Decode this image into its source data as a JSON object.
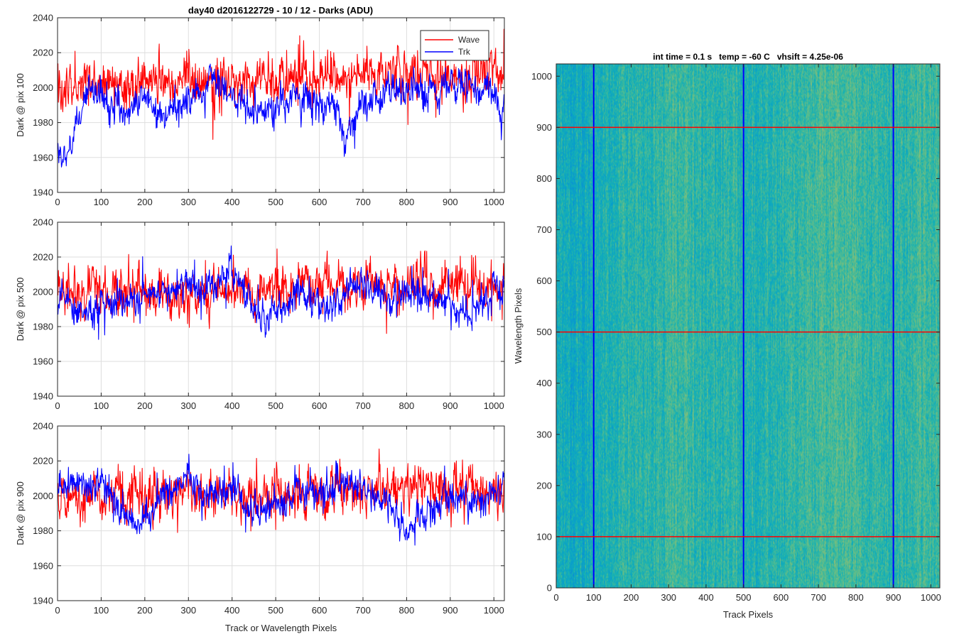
{
  "figure": {
    "suptitle": "day40 d2016122729 - 10 / 12 - Darks (ADU)",
    "colors": {
      "wave": "#ff0000",
      "trk": "#0000ff",
      "grid": "#dedede",
      "axes": "#262626"
    }
  },
  "chart_data": [
    {
      "type": "line",
      "ylabel": "Dark @ pix 100",
      "xlim": [
        0,
        1024
      ],
      "ylim": [
        1940,
        2040
      ],
      "xticks": [
        0,
        100,
        200,
        300,
        400,
        500,
        600,
        700,
        800,
        900,
        1000
      ],
      "yticks": [
        1940,
        1960,
        1980,
        2000,
        2020,
        2040
      ],
      "grid": true,
      "legend": {
        "placement": "top-right"
      },
      "series": [
        {
          "name": "Wave",
          "color": "#ff0000",
          "mean": 2001,
          "noise": 7,
          "spike": 17,
          "trend": [
            [
              0,
              1999
            ],
            [
              300,
              2004
            ],
            [
              600,
              2006
            ],
            [
              800,
              2008
            ],
            [
              1024,
              2005
            ]
          ]
        },
        {
          "name": "Trk",
          "color": "#0000ff",
          "mean": 1995,
          "noise": 5,
          "spike": 10,
          "trend": [
            [
              0,
              1963
            ],
            [
              25,
              1958
            ],
            [
              40,
              1975
            ],
            [
              70,
              2000
            ],
            [
              100,
              1998
            ],
            [
              150,
              1987
            ],
            [
              200,
              1993
            ],
            [
              240,
              1985
            ],
            [
              300,
              1992
            ],
            [
              350,
              2005
            ],
            [
              380,
              2002
            ],
            [
              420,
              1990
            ],
            [
              480,
              1985
            ],
            [
              520,
              1993
            ],
            [
              580,
              1992
            ],
            [
              640,
              1988
            ],
            [
              660,
              1967
            ],
            [
              680,
              1985
            ],
            [
              750,
              1996
            ],
            [
              850,
              2000
            ],
            [
              950,
              2002
            ],
            [
              1000,
              1995
            ],
            [
              1024,
              1985
            ]
          ]
        }
      ]
    },
    {
      "type": "line",
      "ylabel": "Dark @ pix 500",
      "xlim": [
        0,
        1024
      ],
      "ylim": [
        1940,
        2040
      ],
      "xticks": [
        0,
        100,
        200,
        300,
        400,
        500,
        600,
        700,
        800,
        900,
        1000
      ],
      "yticks": [
        1940,
        1960,
        1980,
        2000,
        2020,
        2040
      ],
      "grid": true,
      "series": [
        {
          "name": "Wave",
          "color": "#ff0000",
          "mean": 2000,
          "noise": 7,
          "spike": 16,
          "trend": [
            [
              0,
              2000
            ],
            [
              400,
              2000
            ],
            [
              700,
              2005
            ],
            [
              900,
              2003
            ],
            [
              1024,
              2002
            ]
          ]
        },
        {
          "name": "Trk",
          "color": "#0000ff",
          "mean": 1997,
          "noise": 5,
          "spike": 10,
          "trend": [
            [
              0,
              2000
            ],
            [
              30,
              1990
            ],
            [
              80,
              1988
            ],
            [
              150,
              1995
            ],
            [
              250,
              2002
            ],
            [
              300,
              2005
            ],
            [
              350,
              2003
            ],
            [
              400,
              2012
            ],
            [
              450,
              1990
            ],
            [
              480,
              1982
            ],
            [
              550,
              2000
            ],
            [
              620,
              1990
            ],
            [
              700,
              2005
            ],
            [
              750,
              1995
            ],
            [
              820,
              2000
            ],
            [
              900,
              1995
            ],
            [
              940,
              1985
            ],
            [
              1000,
              2000
            ],
            [
              1024,
              2004
            ]
          ]
        }
      ]
    },
    {
      "type": "line",
      "ylabel": "Dark @ pix 900",
      "xlabel": "Track or Wavelength Pixels",
      "xlim": [
        0,
        1024
      ],
      "ylim": [
        1940,
        2040
      ],
      "xticks": [
        0,
        100,
        200,
        300,
        400,
        500,
        600,
        700,
        800,
        900,
        1000
      ],
      "yticks": [
        1940,
        1960,
        1980,
        2000,
        2020,
        2040
      ],
      "grid": true,
      "series": [
        {
          "name": "Wave",
          "color": "#ff0000",
          "mean": 2000,
          "noise": 7,
          "spike": 18,
          "trend": [
            [
              0,
              1999
            ],
            [
              500,
              2000
            ],
            [
              800,
              2004
            ],
            [
              1024,
              2004
            ]
          ]
        },
        {
          "name": "Trk",
          "color": "#0000ff",
          "mean": 2000,
          "noise": 5,
          "spike": 10,
          "trend": [
            [
              0,
              2005
            ],
            [
              100,
              2008
            ],
            [
              140,
              1992
            ],
            [
              180,
              1983
            ],
            [
              250,
              2003
            ],
            [
              300,
              2008
            ],
            [
              350,
              2002
            ],
            [
              400,
              2003
            ],
            [
              450,
              1990
            ],
            [
              500,
              1995
            ],
            [
              560,
              2002
            ],
            [
              620,
              2005
            ],
            [
              700,
              2005
            ],
            [
              760,
              1993
            ],
            [
              800,
              1978
            ],
            [
              840,
              1990
            ],
            [
              900,
              2000
            ],
            [
              960,
              1997
            ],
            [
              1024,
              2005
            ]
          ]
        }
      ]
    },
    {
      "type": "heatmap",
      "title": "int time = 0.1 s   temp = -60 C   vhsift = 4.25e-06",
      "xlabel": "Track Pixels",
      "ylabel": "Wavelength Pixels",
      "xlim": [
        0,
        1024
      ],
      "ylim": [
        0,
        1024
      ],
      "xticks": [
        0,
        100,
        200,
        300,
        400,
        500,
        600,
        700,
        800,
        900,
        1000
      ],
      "yticks": [
        0,
        100,
        200,
        300,
        400,
        500,
        600,
        700,
        800,
        900,
        1000
      ],
      "colormap": "parula",
      "color_range": [
        1940,
        2040
      ],
      "vertical_markers": {
        "color": "#0000ff",
        "x": [
          100,
          500,
          900
        ]
      },
      "horizontal_markers": {
        "color": "#ff0000",
        "y": [
          100,
          500,
          900
        ]
      }
    }
  ]
}
